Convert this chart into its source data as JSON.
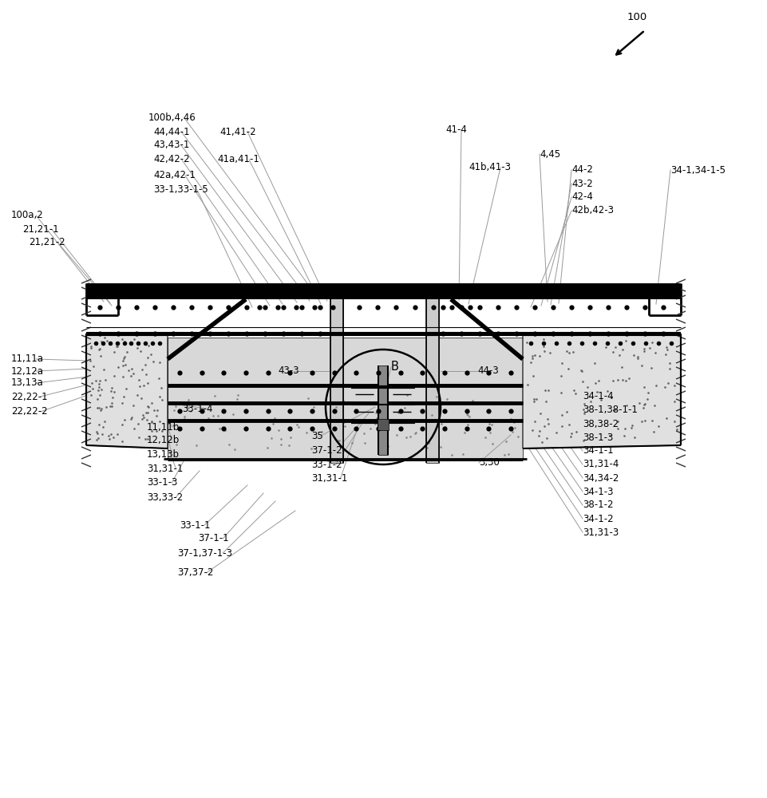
{
  "bg_color": "#ffffff",
  "black": "#000000",
  "gray": "#aaaaaa",
  "labels": {
    "ref100": "100",
    "lb_100b": "100b,4,46",
    "lb_4444": "44,44-1",
    "lb_4343": "43,43-1",
    "lb_4242": "42,42-2",
    "lb_4142": "41,41-2",
    "lb_41a411": "41a,41-1",
    "lb_42a421": "42a,42-1",
    "lb_33133": "33-1,33-1-5",
    "lb_100a2": "100a,2",
    "lb_2121": "21,21-1",
    "lb_21212": "21,21-2",
    "lb_414": "41-4",
    "lb_41b413": "41b,41-3",
    "lb_432": "43-2",
    "lb_424": "42-4",
    "lb_442": "44-2",
    "lb_42b423": "42b,42-3",
    "lb_445": "4,45",
    "lb_34134": "34-1,34-1-5",
    "lb_433": "43-3",
    "lb_B": "B",
    "lb_443": "44-3",
    "lb_3314": "33-1-4",
    "lb_1111a": "11,11a",
    "lb_1212a": "12,12a",
    "lb_1313a": "13,13a",
    "lb_2222": "22,22-1",
    "lb_22222": "22,22-2",
    "lb_1111b": "11,11b",
    "lb_1212b": "12,12b",
    "lb_1313b": "13,13b",
    "lb_31311": "31,31-1",
    "lb_3313": "33-1-3",
    "lb_3333": "33,33-2",
    "lb_3311": "33-1-1",
    "lb_3711": "37-1-1",
    "lb_37137": "37-1,37-1-3",
    "lb_3737": "37,37-2",
    "lb_35": "35",
    "lb_3712": "37-1-2",
    "lb_3312": "33-1-2",
    "lb_31311c": "31,31-1",
    "lb_330": "3,30",
    "lb_3414": "34-1-4",
    "lb_38138": "38-1,38-1-1",
    "lb_3838": "38,38-2",
    "lb_3813": "38-1-3",
    "lb_3411": "34-1-1",
    "lb_31314": "31,31-4",
    "lb_3434": "34,34-2",
    "lb_3413": "34-1-3",
    "lb_3812": "38-1-2",
    "lb_3412": "34-1-2",
    "lb_31313": "31,31-3"
  }
}
